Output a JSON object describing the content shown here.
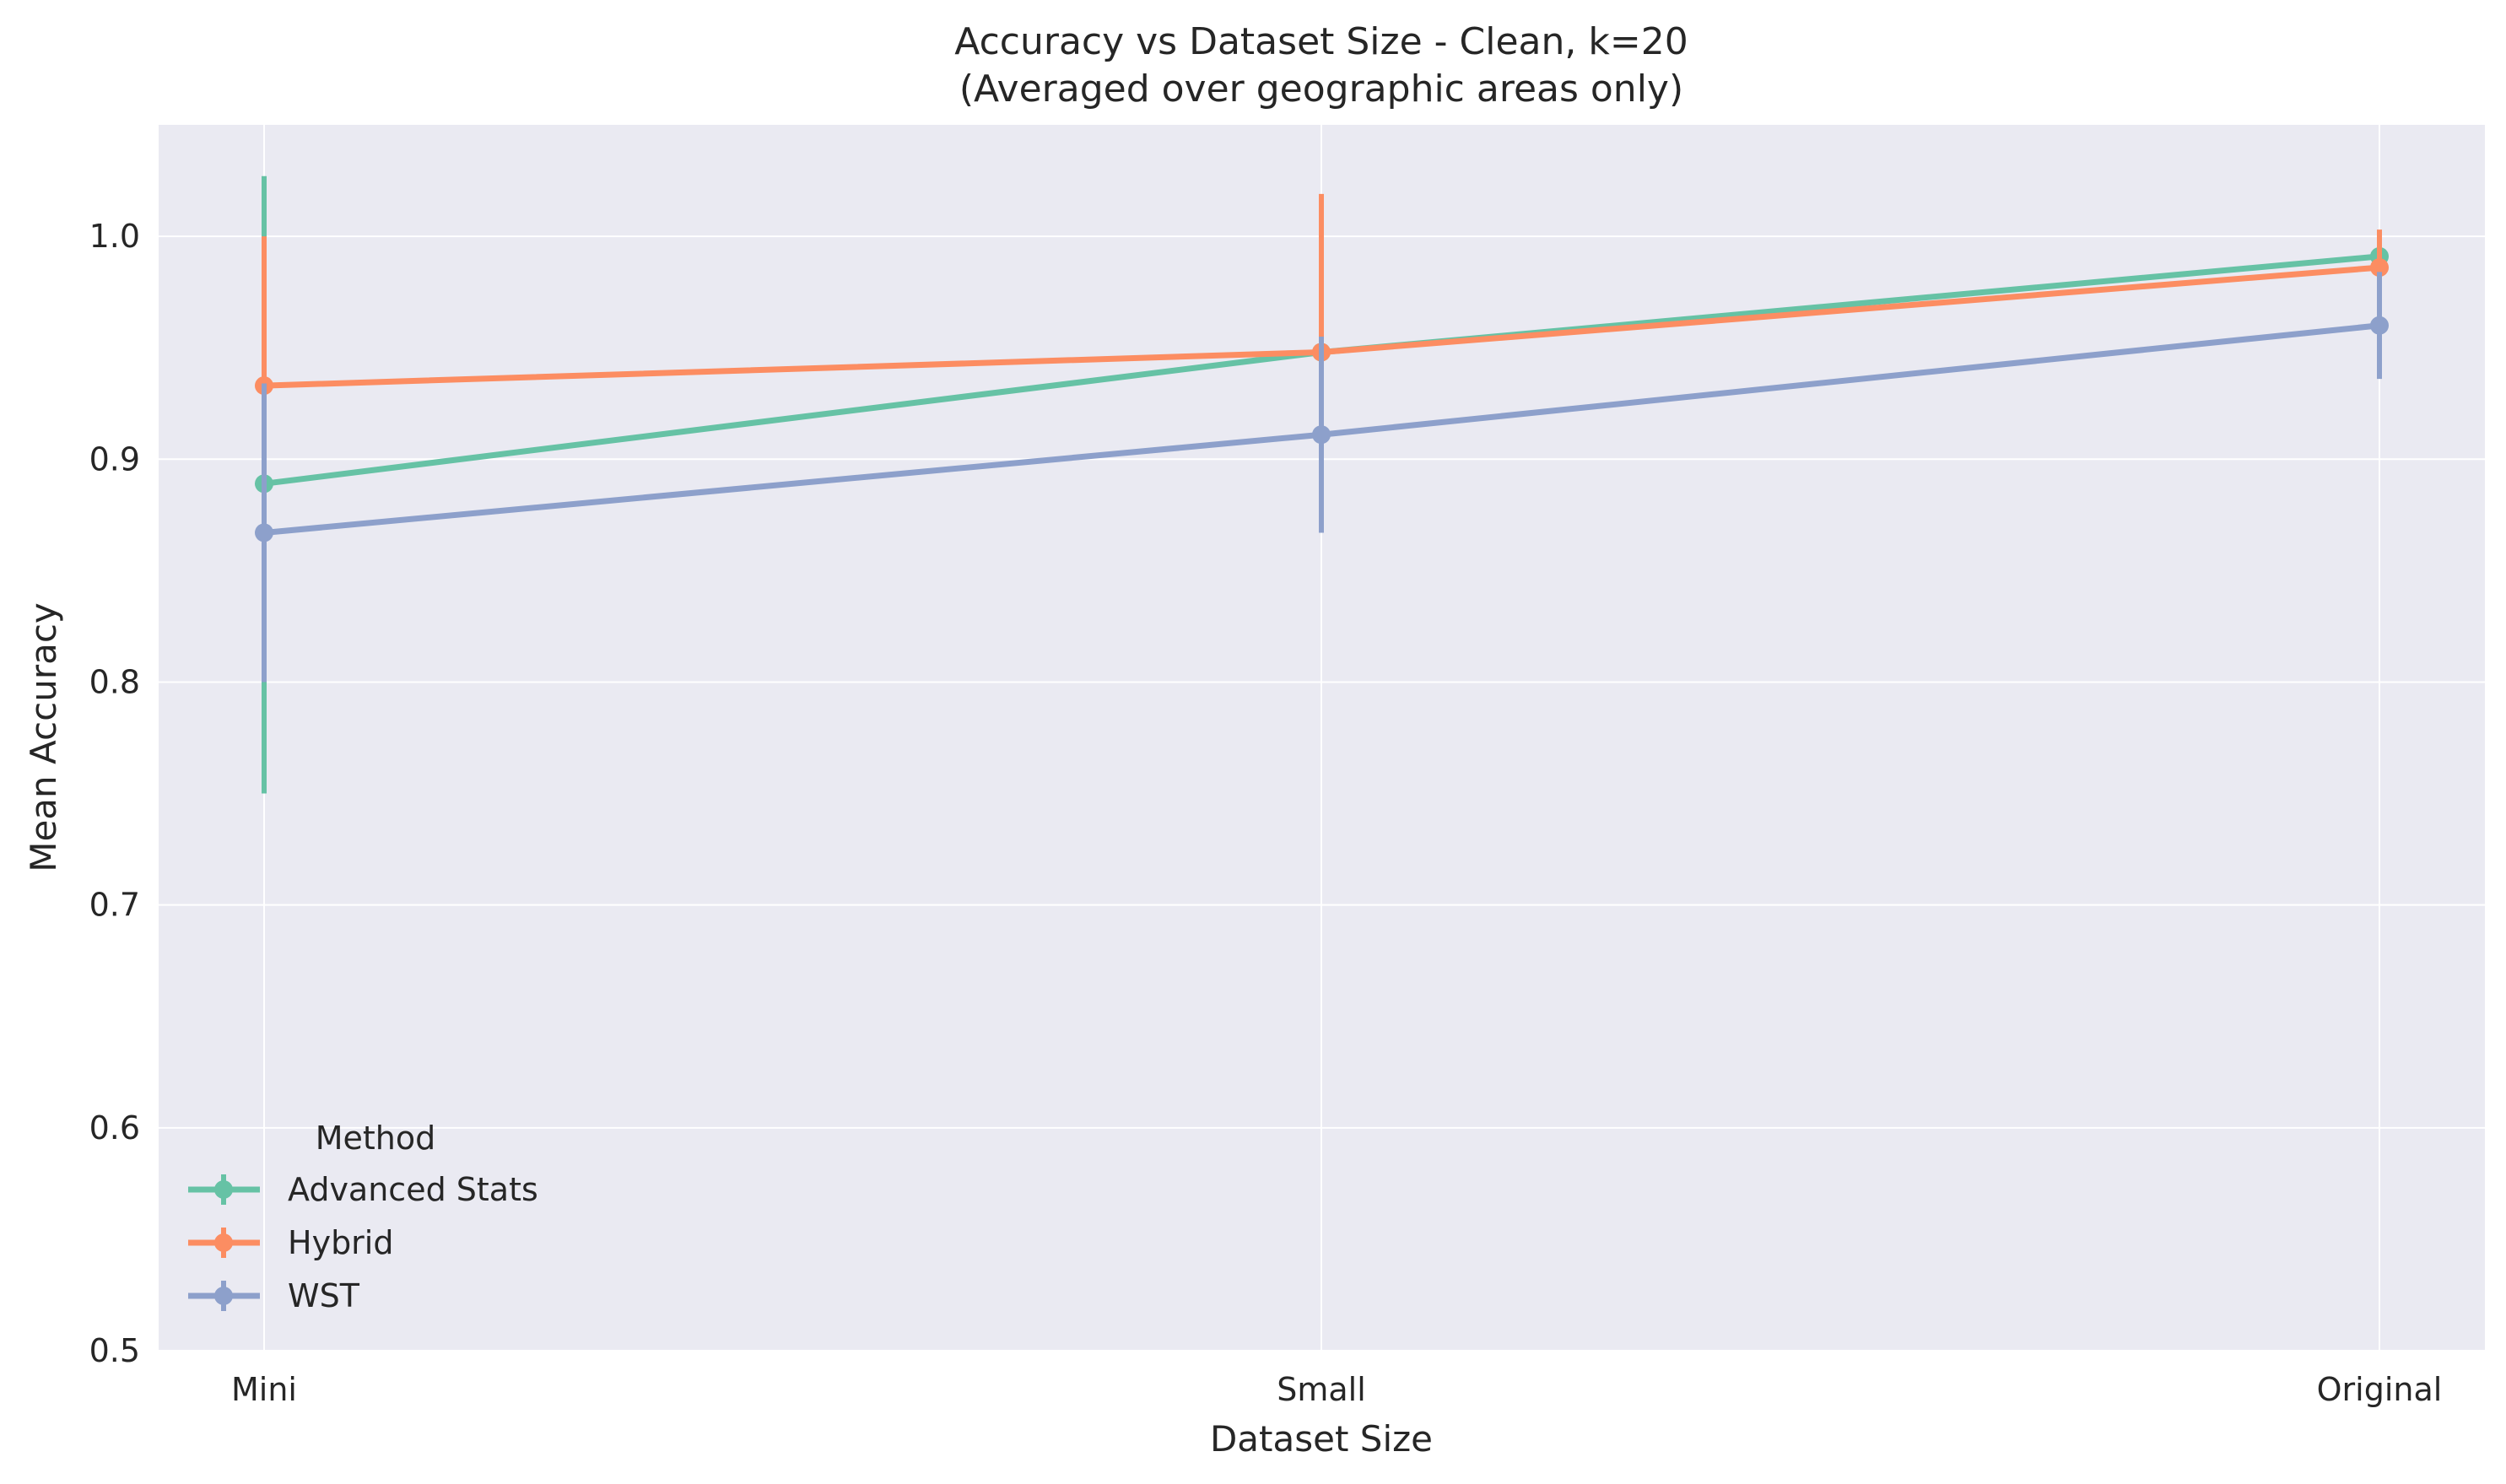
{
  "chart_data": {
    "type": "line",
    "title": "Accuracy vs Dataset Size - Clean, k=20",
    "subtitle": "(Averaged over geographic areas only)",
    "xlabel": "Dataset Size",
    "ylabel": "Mean Accuracy",
    "categories": [
      "Mini",
      "Small",
      "Original"
    ],
    "ylim": [
      0.5,
      1.05
    ],
    "yticks": [
      0.5,
      0.6,
      0.7,
      0.8,
      0.9,
      1.0
    ],
    "ytick_labels": [
      "0.5",
      "0.6",
      "0.7",
      "0.8",
      "0.9",
      "1.0"
    ],
    "grid": true,
    "legend_title": "Method",
    "legend_position": "lower-left",
    "series": [
      {
        "name": "Advanced Stats",
        "color": "#66c2a5",
        "values": [
          0.889,
          0.948,
          0.991
        ],
        "err_low": [
          0.75,
          0.948,
          0.98
        ],
        "err_high": [
          1.027,
          0.948,
          1.002
        ]
      },
      {
        "name": "Hybrid",
        "color": "#fc8d62",
        "values": [
          0.933,
          0.948,
          0.986
        ],
        "err_low": [
          0.866,
          0.877,
          0.969
        ],
        "err_high": [
          1.0,
          1.019,
          1.003
        ]
      },
      {
        "name": "WST",
        "color": "#8da0cb",
        "values": [
          0.867,
          0.911,
          0.96
        ],
        "err_low": [
          0.8,
          0.867,
          0.936
        ],
        "err_high": [
          0.934,
          0.955,
          0.984
        ]
      }
    ]
  }
}
